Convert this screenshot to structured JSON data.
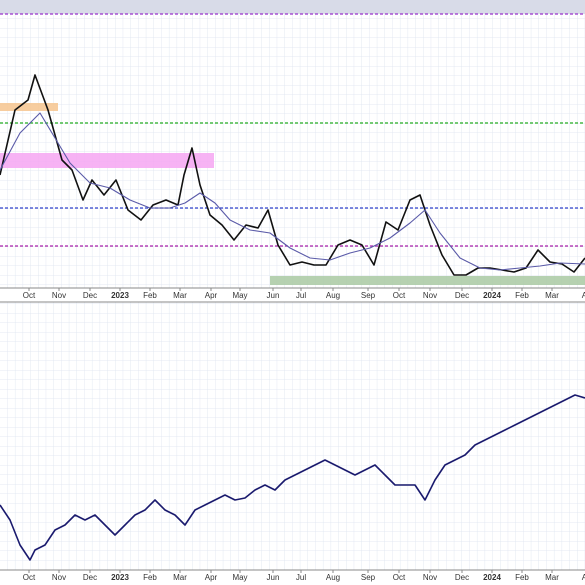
{
  "chart_data": [
    {
      "type": "line",
      "xlim": [
        0,
        585
      ],
      "ylim": [
        0,
        278
      ],
      "xticks": [
        {
          "value": 29,
          "label": "Oct"
        },
        {
          "value": 59,
          "label": "Nov"
        },
        {
          "value": 90,
          "label": "Dec"
        },
        {
          "value": 120,
          "label": "2023"
        },
        {
          "value": 150,
          "label": "Feb"
        },
        {
          "value": 180,
          "label": "Mar"
        },
        {
          "value": 211,
          "label": "Apr"
        },
        {
          "value": 240,
          "label": "May"
        },
        {
          "value": 273,
          "label": "Jun"
        },
        {
          "value": 301,
          "label": "Jul"
        },
        {
          "value": 333,
          "label": "Aug"
        },
        {
          "value": 368,
          "label": "Sep"
        },
        {
          "value": 399,
          "label": "Oct"
        },
        {
          "value": 430,
          "label": "Nov"
        },
        {
          "value": 462,
          "label": "Dec"
        },
        {
          "value": 492,
          "label": "2024"
        },
        {
          "value": 522,
          "label": "Feb"
        },
        {
          "value": 552,
          "label": "Mar"
        },
        {
          "value": 588,
          "label": "Apr"
        }
      ],
      "levels": [
        {
          "value": 274,
          "color": "#9933cc"
        },
        {
          "value": 165,
          "color": "#22aa22"
        },
        {
          "value": 80,
          "color": "#3344cc"
        },
        {
          "value": 42,
          "color": "#aa22aa"
        }
      ],
      "zones": [
        {
          "x": [
            0,
            58
          ],
          "y": [
            177,
            185
          ],
          "color": "#f6c48e"
        },
        {
          "x": [
            0,
            214
          ],
          "y": [
            120,
            135
          ],
          "color": "#f6a6f2"
        },
        {
          "x": [
            270,
            585
          ],
          "y": [
            3,
            12
          ],
          "color": "#a9c9a2"
        }
      ],
      "series": [
        {
          "color": "#111111",
          "x": [
            0,
            15,
            28,
            35,
            48,
            62,
            72,
            83,
            92,
            104,
            116,
            128,
            141,
            153,
            166,
            178,
            184,
            192,
            200,
            210,
            222,
            234,
            246,
            258,
            268,
            278,
            290,
            302,
            314,
            326,
            338,
            350,
            362,
            374,
            386,
            398,
            410,
            420,
            430,
            442,
            454,
            466,
            478,
            490,
            502,
            514,
            526,
            538,
            550,
            562,
            574,
            585
          ],
          "values": [
            113,
            178,
            188,
            213,
            178,
            128,
            118,
            88,
            108,
            93,
            108,
            78,
            68,
            83,
            88,
            83,
            113,
            140,
            103,
            73,
            63,
            48,
            63,
            60,
            78,
            43,
            23,
            26,
            23,
            23,
            43,
            48,
            43,
            23,
            66,
            58,
            88,
            93,
            63,
            33,
            13,
            13,
            20,
            20,
            18,
            16,
            20,
            38,
            26,
            24,
            16,
            30
          ]
        },
        {
          "color": "#5a5aa8",
          "x": [
            0,
            20,
            40,
            55,
            70,
            90,
            110,
            130,
            150,
            170,
            185,
            200,
            215,
            230,
            250,
            270,
            290,
            310,
            330,
            350,
            370,
            390,
            410,
            425,
            440,
            460,
            480,
            500,
            520,
            540,
            560,
            585
          ],
          "values": [
            118,
            155,
            175,
            150,
            125,
            105,
            100,
            88,
            80,
            80,
            85,
            95,
            85,
            68,
            58,
            55,
            40,
            30,
            28,
            35,
            40,
            50,
            65,
            78,
            55,
            30,
            20,
            18,
            20,
            22,
            25,
            24
          ]
        }
      ]
    },
    {
      "type": "line",
      "xlim": [
        0,
        585
      ],
      "ylim": [
        0,
        268
      ],
      "xticks": [
        {
          "value": 29,
          "label": "Oct"
        },
        {
          "value": 59,
          "label": "Nov"
        },
        {
          "value": 90,
          "label": "Dec"
        },
        {
          "value": 120,
          "label": "2023"
        },
        {
          "value": 150,
          "label": "Feb"
        },
        {
          "value": 180,
          "label": "Mar"
        },
        {
          "value": 211,
          "label": "Apr"
        },
        {
          "value": 240,
          "label": "May"
        },
        {
          "value": 273,
          "label": "Jun"
        },
        {
          "value": 301,
          "label": "Jul"
        },
        {
          "value": 333,
          "label": "Aug"
        },
        {
          "value": 368,
          "label": "Sep"
        },
        {
          "value": 399,
          "label": "Oct"
        },
        {
          "value": 430,
          "label": "Nov"
        },
        {
          "value": 462,
          "label": "Dec"
        },
        {
          "value": 492,
          "label": "2024"
        },
        {
          "value": 522,
          "label": "Feb"
        },
        {
          "value": 552,
          "label": "Mar"
        },
        {
          "value": 588,
          "label": "Apr"
        }
      ],
      "series": [
        {
          "color": "#1a1a6e",
          "x": [
            0,
            10,
            20,
            30,
            35,
            45,
            55,
            65,
            75,
            85,
            95,
            105,
            115,
            125,
            135,
            145,
            155,
            165,
            175,
            185,
            195,
            205,
            215,
            225,
            235,
            245,
            255,
            265,
            275,
            285,
            295,
            305,
            315,
            325,
            335,
            345,
            355,
            365,
            375,
            385,
            395,
            405,
            415,
            425,
            435,
            445,
            455,
            465,
            475,
            485,
            495,
            505,
            515,
            525,
            535,
            545,
            555,
            565,
            575,
            585
          ],
          "values": [
            65,
            50,
            25,
            10,
            20,
            25,
            40,
            45,
            55,
            50,
            55,
            45,
            35,
            45,
            55,
            60,
            70,
            60,
            55,
            45,
            60,
            65,
            70,
            75,
            70,
            72,
            80,
            85,
            80,
            90,
            95,
            100,
            105,
            110,
            105,
            100,
            95,
            100,
            105,
            95,
            85,
            85,
            85,
            70,
            90,
            105,
            110,
            115,
            125,
            130,
            135,
            140,
            145,
            150,
            155,
            160,
            165,
            170,
            175,
            172
          ]
        }
      ]
    }
  ]
}
